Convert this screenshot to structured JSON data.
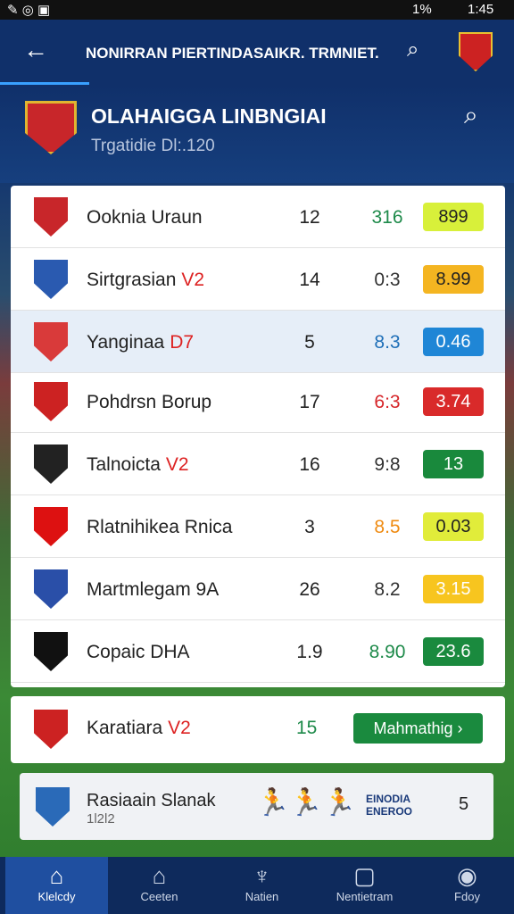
{
  "status_bar": {
    "battery": "1%",
    "time": "1:45"
  },
  "app_bar": {
    "title": "NONIRRAN PIERTINDASAIKR. TRMNIET."
  },
  "header": {
    "title": "OLAHAIGGA LINBNGIAI",
    "subtitle": "Trgatidie Dl:.120"
  },
  "table": {
    "rows": [
      {
        "name": "Ooknia Uraun",
        "tag": null,
        "played": "12",
        "score": "316",
        "score_color": "#1e8a4a",
        "badge": "899",
        "badge_color": "#d8f03a",
        "badge_text": "#222"
      },
      {
        "name": "Sirtgrasian",
        "tag": "V2",
        "played": "14",
        "score": "0:3",
        "score_color": "#333",
        "badge": "8.99",
        "badge_color": "#f4b521",
        "badge_text": "#222"
      },
      {
        "name": "Yanginaa",
        "tag": "D7",
        "played": "5",
        "score": "8.3",
        "score_color": "#1f6fb8",
        "badge": "0.46",
        "badge_color": "#1f86d6",
        "badge_text": "#fff"
      },
      {
        "name": "Pohdrsn Borup",
        "tag": null,
        "played": "17",
        "score": "6:3",
        "score_color": "#d6262a",
        "badge": "3.74",
        "badge_color": "#d92a2a",
        "badge_text": "#fff"
      },
      {
        "name": "Talnoicta",
        "tag": "V2",
        "played": "16",
        "score": "9:8",
        "score_color": "#333",
        "badge": "13",
        "badge_color": "#19893c",
        "badge_text": "#fff"
      },
      {
        "name": "Rlatnihikea Rnica",
        "tag": null,
        "played": "3",
        "score": "8.5",
        "score_color": "#ef8b12",
        "badge": "0.03",
        "badge_color": "#e1ec3a",
        "badge_text": "#222"
      },
      {
        "name": "Martmlegam 9A",
        "tag": null,
        "played": "26",
        "score": "8.2",
        "score_color": "#333",
        "badge": "3.15",
        "badge_color": "#f7c51f",
        "badge_text": "#fff"
      },
      {
        "name": "Copaic DHA",
        "tag": null,
        "played": "1.9",
        "score": "8.90",
        "score_color": "#1e8a4a",
        "badge": "23.6",
        "badge_color": "#1a8a3e",
        "badge_text": "#fff"
      }
    ]
  },
  "feature": {
    "name": "Karatiara",
    "tag": "V2",
    "played": "15",
    "button": "Mahmathig ›"
  },
  "promo": {
    "name": "Rasiaain Slanak",
    "code": "1l2l2",
    "brand": "EINODIA ENEROO",
    "count": "5"
  },
  "nav": {
    "tabs": [
      "Klelcdy",
      "Ceeten",
      "Natien",
      "Nentietram",
      "Fdoy"
    ]
  }
}
